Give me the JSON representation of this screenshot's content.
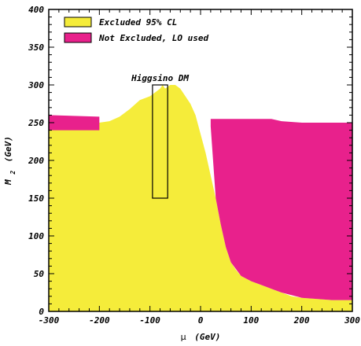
{
  "chart_data": {
    "type": "area",
    "xlabel_symbol": "μ",
    "xlabel_unit": "(GeV)",
    "ylabel_main": "M",
    "ylabel_sub": "2",
    "ylabel_unit": "(GeV)",
    "xlim": [
      -300,
      300
    ],
    "ylim": [
      0,
      400
    ],
    "x_ticks": [
      -300,
      -200,
      -100,
      0,
      100,
      200,
      300
    ],
    "y_ticks": [
      0,
      50,
      100,
      150,
      200,
      250,
      300,
      350,
      400
    ],
    "grid": false,
    "legend_position": "top-left",
    "series": [
      {
        "name": "Excluded 95% CL",
        "color": "#f5ec3a",
        "edge_color": "#000000",
        "x": [
          -300,
          -280,
          -250,
          -220,
          -200,
          -180,
          -160,
          -140,
          -120,
          -100,
          -90,
          -80,
          -75,
          -70,
          -60,
          -50,
          -40,
          -30,
          -20,
          -10,
          0,
          10,
          20,
          30,
          40,
          50,
          60,
          70,
          80,
          100,
          120,
          140,
          160,
          180,
          200,
          240,
          260,
          300
        ],
        "y": [
          240,
          245,
          245,
          246,
          250,
          252,
          258,
          268,
          280,
          285,
          290,
          295,
          300,
          295,
          300,
          300,
          295,
          285,
          275,
          260,
          235,
          210,
          180,
          150,
          115,
          85,
          65,
          55,
          47,
          40,
          35,
          30,
          25,
          20,
          18,
          16,
          15,
          15
        ]
      },
      {
        "name": "Not Excluded, LO used",
        "color": "#e8218c",
        "edge_color": "#000000",
        "regions": [
          {
            "x": [
              -300,
              -200
            ],
            "y_low": [
              240,
              240
            ],
            "y_high": [
              260,
              258
            ]
          },
          {
            "x": [
              20,
              30,
              40,
              50,
              60,
              80,
              100,
              120,
              140,
              160,
              200,
              260,
              300
            ],
            "y_low": [
              245,
              150,
              115,
              85,
              65,
              47,
              40,
              35,
              30,
              25,
              18,
              15,
              15
            ],
            "y_high": [
              255,
              255,
              255,
              255,
              255,
              255,
              255,
              255,
              255,
              252,
              250,
              250,
              250
            ]
          }
        ]
      }
    ],
    "annotations": [
      {
        "text": "Higgsino DM",
        "x": -80,
        "y": 305
      }
    ],
    "annotation_box": {
      "x": [
        -95,
        -65
      ],
      "y": [
        150,
        300
      ]
    }
  }
}
